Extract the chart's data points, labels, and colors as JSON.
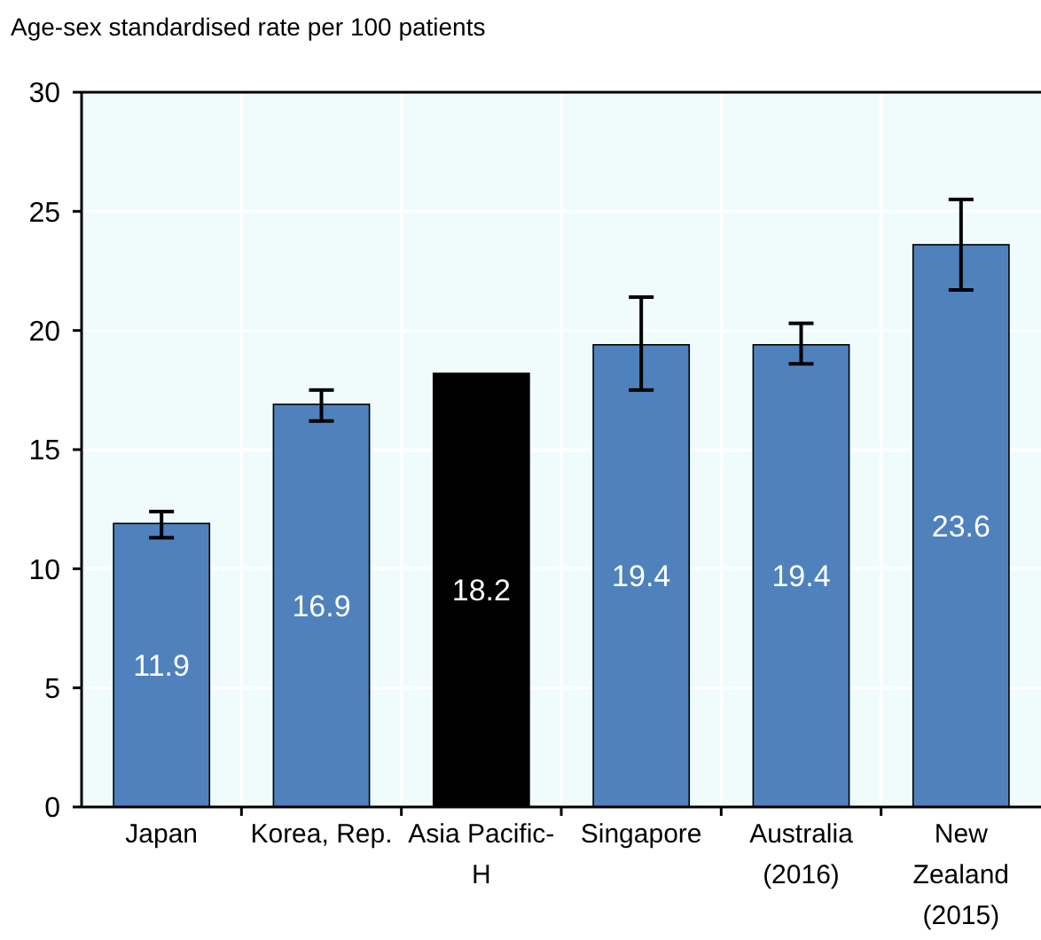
{
  "chart_data": {
    "type": "bar",
    "title": "Age-sex standardised rate per 100 patients",
    "categories": [
      "Japan",
      "Korea, Rep.",
      "Asia Pacific-\nH",
      "Singapore",
      "Australia\n(2016)",
      "New\nZealand\n(2015)"
    ],
    "values": [
      11.9,
      16.9,
      18.2,
      19.4,
      19.4,
      23.6
    ],
    "colors": [
      "#4f81bd",
      "#4f81bd",
      "#000000",
      "#4f81bd",
      "#4f81bd",
      "#4f81bd"
    ],
    "errors": [
      [
        11.3,
        12.4
      ],
      [
        16.2,
        17.5
      ],
      null,
      [
        17.5,
        21.4
      ],
      [
        18.6,
        20.3
      ],
      [
        21.7,
        25.5
      ]
    ],
    "ylim": [
      0,
      30
    ],
    "yticks": [
      0,
      5,
      10,
      15,
      20,
      25,
      30
    ],
    "grid": true,
    "data_labels": true
  }
}
